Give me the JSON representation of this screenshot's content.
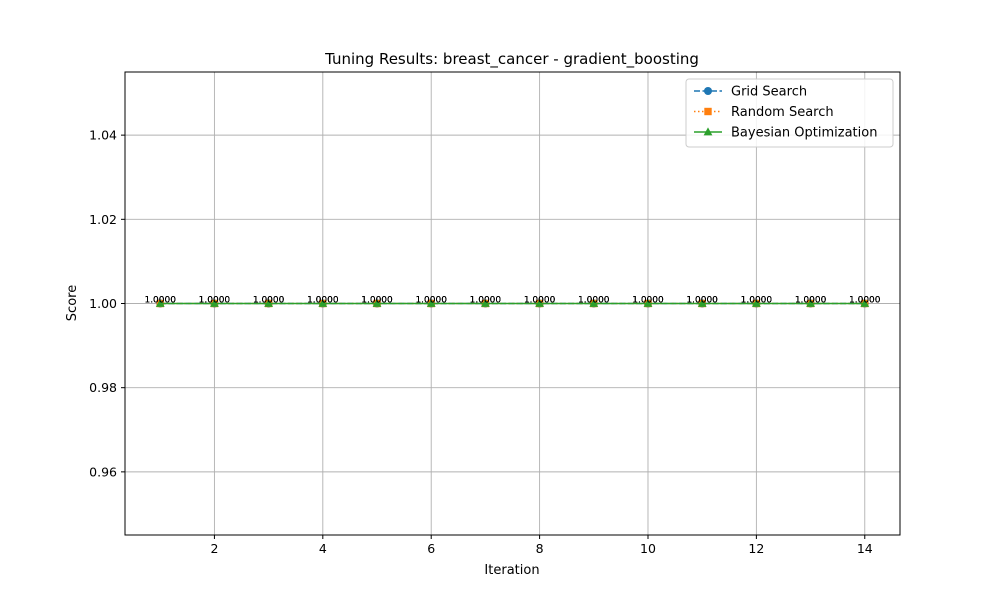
{
  "chart_data": {
    "type": "line",
    "title": "Tuning Results: breast_cancer - gradient_boosting",
    "xlabel": "Iteration",
    "ylabel": "Score",
    "xlim": [
      0.35,
      14.65
    ],
    "ylim": [
      0.945,
      1.055
    ],
    "xticks": [
      2,
      4,
      6,
      8,
      10,
      12,
      14
    ],
    "yticks": [
      0.96,
      0.98,
      1.0,
      1.02,
      1.04
    ],
    "ytick_labels": [
      "0.96",
      "0.98",
      "1.00",
      "1.02",
      "1.04"
    ],
    "grid": true,
    "legend_position": "top-right",
    "x": [
      1,
      2,
      3,
      4,
      5,
      6,
      7,
      8,
      9,
      10,
      11,
      12,
      13,
      14
    ],
    "data_label_format": "1.0000",
    "series": [
      {
        "name": "Grid Search",
        "color": "#1f77b4",
        "marker": "circle",
        "linestyle": "dashed",
        "values": [
          1.0,
          1.0,
          1.0,
          1.0,
          1.0,
          1.0,
          1.0,
          1.0,
          1.0,
          1.0,
          1.0,
          1.0,
          1.0,
          1.0
        ]
      },
      {
        "name": "Random Search",
        "color": "#ff7f0e",
        "marker": "square",
        "linestyle": "dotted",
        "values": [
          1.0,
          1.0,
          1.0,
          1.0,
          1.0,
          1.0,
          1.0,
          1.0,
          1.0,
          1.0,
          1.0,
          1.0,
          1.0,
          1.0
        ]
      },
      {
        "name": "Bayesian Optimization",
        "color": "#2ca02c",
        "marker": "triangle",
        "linestyle": "solid",
        "values": [
          1.0,
          1.0,
          1.0,
          1.0,
          1.0,
          1.0,
          1.0,
          1.0,
          1.0,
          1.0,
          1.0,
          1.0,
          1.0,
          1.0
        ]
      }
    ]
  }
}
